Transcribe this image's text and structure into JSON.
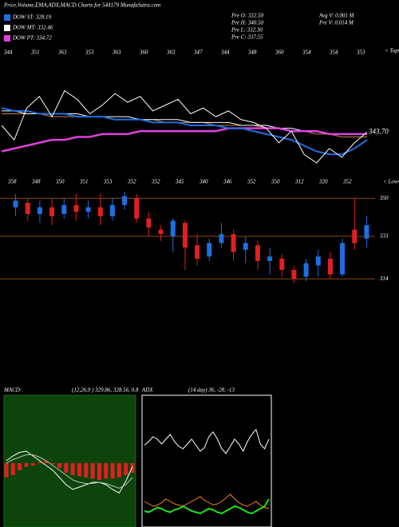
{
  "header": {
    "title": "Price,Volume,EMA,ADX,MACD Charts for 544179 MunafaSutra.com",
    "legend": [
      {
        "name": "DOW ST: 328.19",
        "color": "#1e6fe0"
      },
      {
        "name": "DOW MT: 332.46",
        "color": "#ffffff"
      },
      {
        "name": "DOW PT: 334.72",
        "color": "#e040e0"
      }
    ],
    "info": [
      "Pre  O: 332.50",
      "Pre  H: 340.50",
      "Pre  L: 332.30",
      "Pre  C: 337.55"
    ],
    "info2": [
      "Avg V: 0.001 M",
      "Pre  V: 0.014  M"
    ]
  },
  "chart_data": [
    {
      "type": "line",
      "side_label": "< Tops",
      "last_label": "343.70",
      "annotations": [
        "344",
        "351",
        "363",
        "353",
        "363",
        "360",
        "363",
        "347",
        "344",
        "348",
        "360",
        "354",
        "354",
        "353"
      ],
      "ylim": [
        330,
        370
      ],
      "series": [
        {
          "color": "#c08040",
          "values": [
            350,
            350,
            350,
            350,
            349,
            349,
            349,
            349,
            349,
            348,
            348,
            348,
            348,
            347,
            347,
            347,
            347,
            346,
            346,
            346,
            346,
            345,
            345,
            344,
            344,
            343,
            343,
            342,
            342,
            342
          ]
        },
        {
          "color": "#ffffff",
          "values": [
            351,
            351,
            350,
            350,
            350,
            350,
            350,
            349,
            349,
            349,
            349,
            348,
            348,
            348,
            348,
            347,
            347,
            347,
            347,
            346,
            346,
            346,
            345,
            345,
            344,
            344,
            343,
            343,
            343,
            343
          ]
        },
        {
          "color": "#e040e0",
          "values": [
            337,
            338,
            339,
            340,
            341,
            341,
            342,
            342,
            343,
            343,
            343,
            344,
            344,
            344,
            344,
            344,
            344,
            344,
            345,
            345,
            345,
            345,
            345,
            344,
            344,
            344,
            343,
            343,
            343,
            343
          ]
        },
        {
          "color": "#1e6fe0",
          "values": [
            352,
            351,
            351,
            350,
            350,
            350,
            349,
            349,
            349,
            348,
            348,
            348,
            347,
            347,
            347,
            346,
            346,
            346,
            345,
            345,
            344,
            343,
            342,
            341,
            339,
            337,
            336,
            336,
            338,
            341
          ]
        },
        {
          "color": "#ffffff",
          "values": [
            346,
            341,
            352,
            356,
            349,
            358,
            355,
            350,
            353,
            357,
            354,
            356,
            351,
            353,
            355,
            350,
            352,
            349,
            351,
            348,
            347,
            345,
            340,
            344,
            336,
            333,
            338,
            335,
            340,
            343.7
          ]
        }
      ]
    },
    {
      "type": "candlestick",
      "side_label": "< Lows",
      "annotations": [
        "358",
        "348",
        "350",
        "351",
        "353",
        "352",
        "352",
        "345",
        "340",
        "346",
        "352",
        "350",
        "312",
        "320",
        "352"
      ],
      "ylim": [
        303,
        353
      ],
      "yticks": [
        350,
        333,
        314
      ],
      "line_color": "#8a4a10",
      "up_color": "#1e6fe0",
      "down_color": "#e02020",
      "open": [
        346,
        348,
        343,
        346,
        343,
        347,
        344,
        346,
        342,
        347,
        350,
        341,
        336,
        333,
        339,
        329,
        324,
        330,
        334,
        327,
        329,
        322,
        323,
        318,
        315,
        320,
        323,
        316,
        336,
        332
      ],
      "high": [
        352,
        350,
        349,
        350,
        350,
        352,
        349,
        352,
        350,
        353,
        352,
        344,
        338,
        341,
        340,
        334,
        332,
        339,
        336,
        333,
        331,
        328,
        325,
        320,
        323,
        327,
        326,
        332,
        350,
        342
      ],
      "low": [
        342,
        340,
        339,
        338,
        341,
        340,
        341,
        338,
        340,
        345,
        339,
        333,
        331,
        326,
        318,
        320,
        322,
        328,
        322,
        321,
        318,
        316,
        315,
        312,
        313,
        315,
        314,
        315,
        327,
        328
      ],
      "close": [
        349,
        343,
        346,
        342,
        347,
        344,
        346,
        342,
        347,
        351,
        341,
        337,
        334,
        340,
        328,
        323,
        330,
        334,
        326,
        330,
        322,
        324,
        318,
        314,
        321,
        324,
        316,
        330,
        330,
        338
      ]
    },
    {
      "type": "macd",
      "title": "MACD:",
      "params": "(12,26,9 ) 329.86, 328.56, 0.8",
      "ylim": [
        -5,
        5
      ],
      "bar_color": "#e02020",
      "values": [
        -1.2,
        -1.0,
        -0.6,
        -0.3,
        -0.2,
        0.1,
        0.2,
        -0.1,
        -0.4,
        -0.8,
        -1.0,
        -1.1,
        -1.2,
        -1.3,
        -1.4,
        -1.3,
        -1.3,
        -1.2,
        -1.0,
        -0.8
      ],
      "series": [
        {
          "color": "#ffffff",
          "values": [
            0.2,
            0.6,
            0.9,
            1.0,
            0.6,
            0.2,
            -0.2,
            -0.6,
            -1.2,
            -1.8,
            -2.2,
            -2.0,
            -1.8,
            -1.6,
            -1.6,
            -1.8,
            -2.2,
            -2.5,
            -1.5,
            -0.3
          ]
        },
        {
          "color": "#bbbbbb",
          "values": [
            0.0,
            0.3,
            0.5,
            0.7,
            0.7,
            0.5,
            0.2,
            -0.2,
            -0.6,
            -1.0,
            -1.4,
            -1.6,
            -1.7,
            -1.7,
            -1.6,
            -1.7,
            -1.9,
            -2.1,
            -1.8,
            -1.2
          ]
        }
      ]
    },
    {
      "type": "adx",
      "title": "ADX",
      "params": "(14 day) 36, -28, -13",
      "ylim": [
        0,
        100
      ],
      "series": [
        {
          "color": "#ffffff",
          "values": [
            65,
            68,
            72,
            70,
            66,
            70,
            74,
            68,
            64,
            62,
            66,
            70,
            65,
            60,
            63,
            72,
            76,
            70,
            62,
            58,
            64,
            70,
            66,
            60,
            68,
            74,
            78,
            66,
            62,
            70
          ]
        },
        {
          "color": "#ff8020",
          "values": [
            18,
            16,
            14,
            15,
            17,
            20,
            18,
            16,
            15,
            14,
            16,
            18,
            20,
            22,
            19,
            17,
            15,
            16,
            18,
            21,
            24,
            20,
            17,
            15,
            14,
            16,
            18,
            15,
            13,
            12
          ]
        },
        {
          "color": "#20e020",
          "values": [
            10,
            9,
            11,
            13,
            12,
            10,
            9,
            11,
            12,
            14,
            12,
            10,
            9,
            8,
            10,
            12,
            11,
            9,
            8,
            10,
            12,
            14,
            13,
            11,
            9,
            8,
            10,
            12,
            14,
            20
          ]
        }
      ]
    }
  ]
}
